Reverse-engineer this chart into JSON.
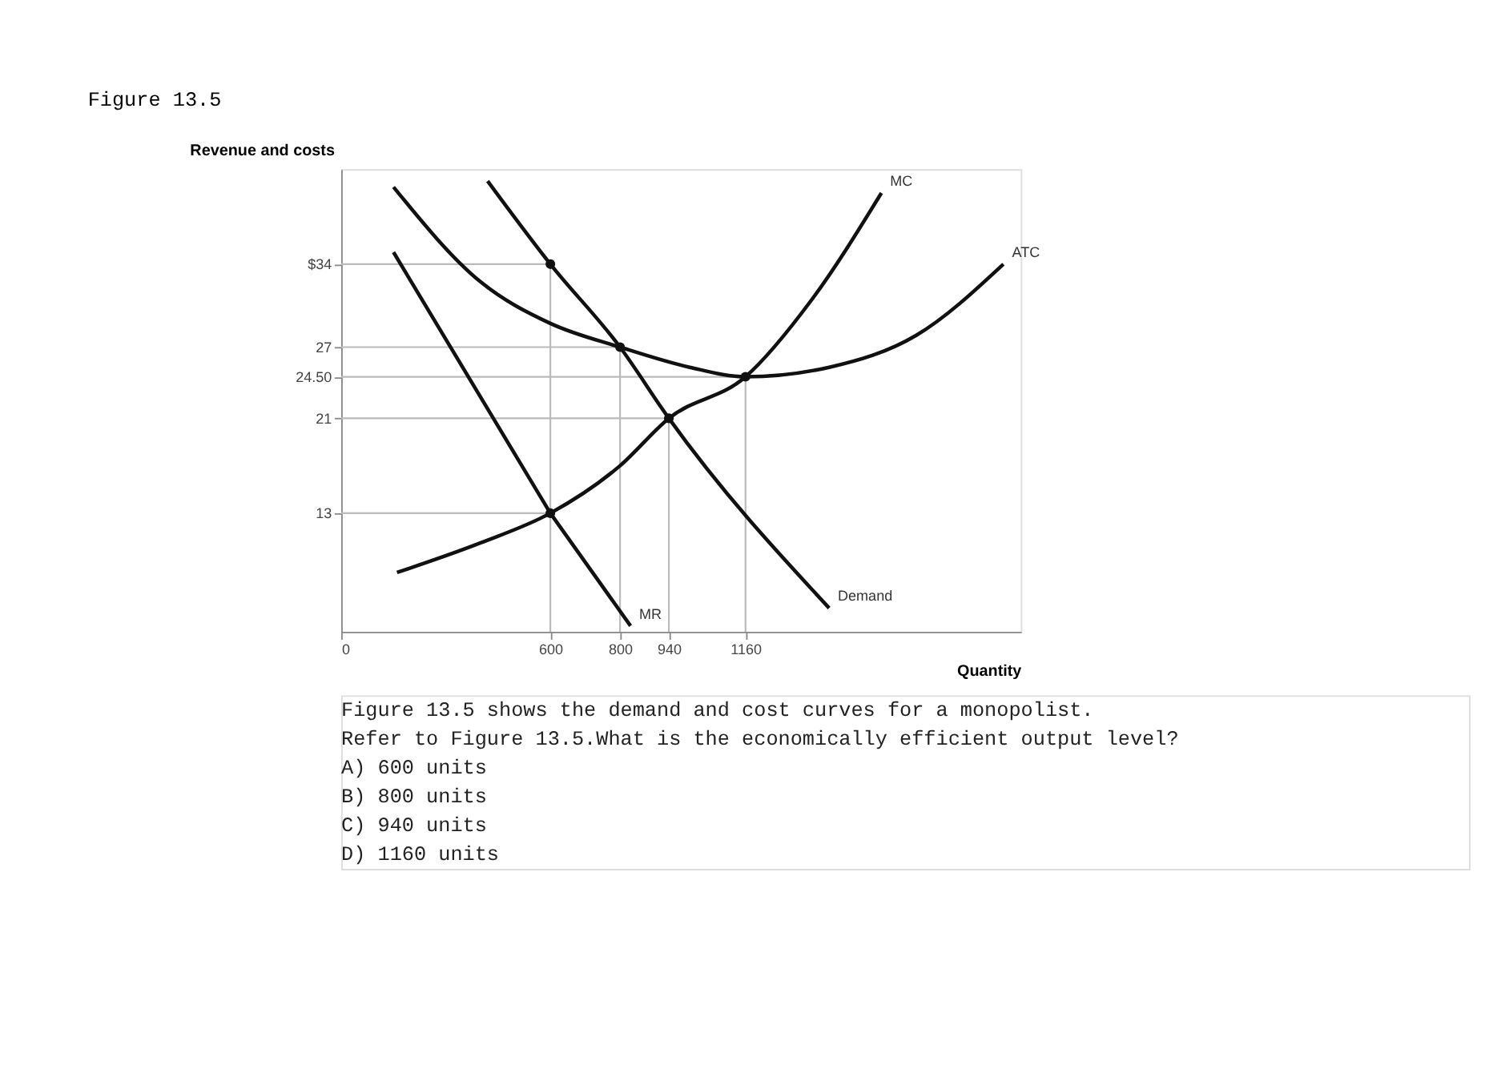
{
  "chart_data": {
    "type": "line",
    "title": "Figure 13.5",
    "xlabel": "Quantity",
    "ylabel": "Revenue and costs",
    "xlim": [
      0,
      1950
    ],
    "ylim": [
      3,
      42
    ],
    "xticks": [
      0,
      600,
      800,
      940,
      1160
    ],
    "yticks": [
      {
        "value": 34,
        "label": "$34"
      },
      27,
      {
        "value": 24.5,
        "label": "24.50"
      },
      21,
      13
    ],
    "grid": false,
    "series": [
      {
        "color": "#111111",
        "x": [
          150,
          400,
          600,
          800,
          1000,
          1160,
          1400,
          1650,
          1900
        ],
        "values": [
          40.5,
          32.5,
          29,
          27,
          25.3,
          24.5,
          25.3,
          28,
          34
        ]
      },
      {
        "color": "#111111",
        "x": [
          160,
          400,
          600,
          800,
          940,
          1160,
          1350,
          1550
        ],
        "values": [
          8,
          10.5,
          13,
          17,
          21,
          24.5,
          31,
          40
        ]
      },
      {
        "color": "#111111",
        "x": [
          420,
          600,
          800,
          940,
          1400
        ],
        "values": [
          41,
          34,
          27,
          21,
          5
        ]
      },
      {
        "color": "#111111",
        "x": [
          150,
          600,
          830
        ],
        "values": [
          35,
          13,
          3.5
        ]
      },
      {
        "type": "scatter",
        "color": "#111111",
        "x": [
          600,
          800,
          940,
          1160,
          600
        ],
        "values": [
          34,
          27,
          21,
          24.5,
          13
        ]
      },
      {
        "color": "#bbbbbb",
        "x": [
          0,
          600,
          600
        ],
        "values": [
          34,
          34,
          3
        ]
      },
      {
        "color": "#bbbbbb",
        "x": [
          0,
          800,
          800
        ],
        "values": [
          27,
          27,
          3
        ]
      },
      {
        "color": "#bbbbbb",
        "x": [
          0,
          1160,
          1160
        ],
        "values": [
          24.5,
          24.5,
          3
        ]
      },
      {
        "color": "#bbbbbb",
        "x": [
          0,
          940,
          940
        ],
        "values": [
          21,
          21,
          3
        ]
      },
      {
        "color": "#bbbbbb",
        "x": [
          0,
          600
        ],
        "values": [
          13,
          13
        ]
      }
    ],
    "annotations": [
      {
        "text": "ATC",
        "x": 1900,
        "y": 34
      },
      {
        "text": "MC",
        "x": 1550,
        "y": 40
      },
      {
        "text": "Demand",
        "x": 1400,
        "y": 5
      },
      {
        "text": "MR",
        "x": 830,
        "y": 3.5
      },
      "Figure 13.5 shows the demand and cost curves for a monopolist.",
      "Refer to Figure 13.5.What is the economically efficient output level?",
      "A) 600 units",
      "B) 800 units",
      "C) 940 units",
      "D) 1160 units"
    ]
  }
}
